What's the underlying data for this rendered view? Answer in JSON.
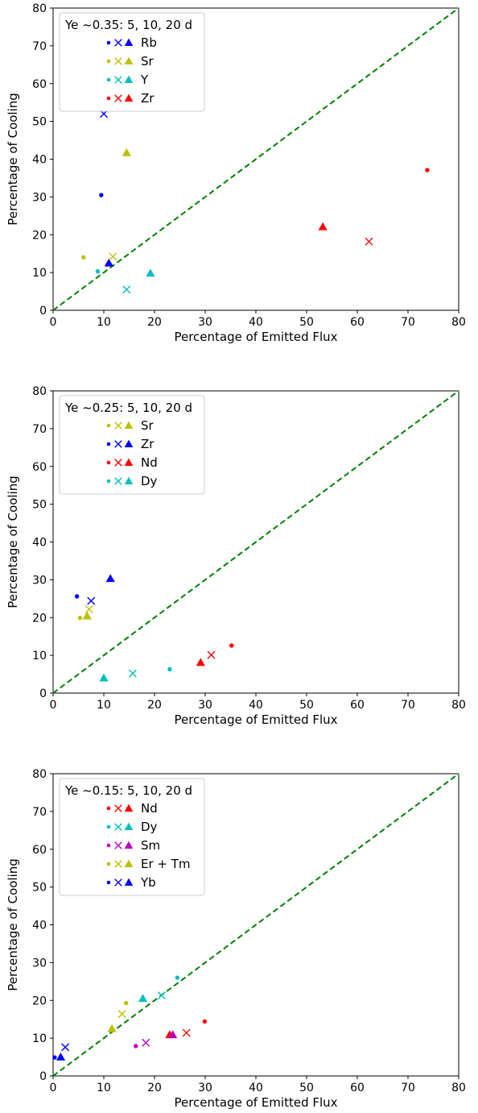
{
  "chart_data": [
    {
      "type": "scatter",
      "xlabel": "Percentage of Emitted Flux",
      "ylabel": "Percentage of Cooling",
      "xlim": [
        0,
        80
      ],
      "ylim": [
        0,
        80
      ],
      "xticks": [
        "0",
        "10",
        "20",
        "30",
        "40",
        "50",
        "60",
        "70",
        "80"
      ],
      "yticks": [
        "0",
        "10",
        "20",
        "30",
        "40",
        "50",
        "60",
        "70",
        "80"
      ],
      "reference_line": {
        "type": "y=x",
        "style": "dashed",
        "color": "#008000"
      },
      "legend": {
        "title": "Ye ~0.35: 5, 10, 20 d",
        "placement": "upper-left",
        "markers": [
          "circle",
          "x",
          "triangle"
        ]
      },
      "series": [
        {
          "name": "Rb",
          "color": "#0000ff",
          "points": [
            {
              "day": 5,
              "x": 9.5,
              "y": 30.5
            },
            {
              "day": 10,
              "x": 10.0,
              "y": 52.0
            },
            {
              "day": 20,
              "x": 11.0,
              "y": 12.5
            }
          ]
        },
        {
          "name": "Sr",
          "color": "#bfbf00",
          "points": [
            {
              "day": 5,
              "x": 6.0,
              "y": 14.0
            },
            {
              "day": 10,
              "x": 11.8,
              "y": 14.2
            },
            {
              "day": 20,
              "x": 14.5,
              "y": 41.7
            }
          ]
        },
        {
          "name": "Y",
          "color": "#00bfbf",
          "points": [
            {
              "day": 5,
              "x": 8.8,
              "y": 10.3
            },
            {
              "day": 10,
              "x": 14.5,
              "y": 5.5
            },
            {
              "day": 20,
              "x": 19.2,
              "y": 9.8
            }
          ]
        },
        {
          "name": "Zr",
          "color": "#ff0000",
          "points": [
            {
              "day": 5,
              "x": 73.8,
              "y": 37.1
            },
            {
              "day": 10,
              "x": 62.3,
              "y": 18.2
            },
            {
              "day": 20,
              "x": 53.2,
              "y": 22.1
            }
          ]
        }
      ]
    },
    {
      "type": "scatter",
      "xlabel": "Percentage of Emitted Flux",
      "ylabel": "Percentage of Cooling",
      "xlim": [
        0,
        80
      ],
      "ylim": [
        0,
        80
      ],
      "xticks": [
        "0",
        "10",
        "20",
        "30",
        "40",
        "50",
        "60",
        "70",
        "80"
      ],
      "yticks": [
        "0",
        "10",
        "20",
        "30",
        "40",
        "50",
        "60",
        "70",
        "80"
      ],
      "reference_line": {
        "type": "y=x",
        "style": "dashed",
        "color": "#008000"
      },
      "legend": {
        "title": "Ye ~0.25: 5, 10, 20 d",
        "placement": "upper-left",
        "markers": [
          "circle",
          "x",
          "triangle"
        ]
      },
      "series": [
        {
          "name": "Sr",
          "color": "#bfbf00",
          "points": [
            {
              "day": 5,
              "x": 5.3,
              "y": 19.9
            },
            {
              "day": 10,
              "x": 7.1,
              "y": 22.2
            },
            {
              "day": 20,
              "x": 6.7,
              "y": 20.4
            }
          ]
        },
        {
          "name": "Zr",
          "color": "#0000ff",
          "points": [
            {
              "day": 5,
              "x": 4.7,
              "y": 25.6
            },
            {
              "day": 10,
              "x": 7.5,
              "y": 24.4
            },
            {
              "day": 20,
              "x": 11.3,
              "y": 30.3
            }
          ]
        },
        {
          "name": "Nd",
          "color": "#ff0000",
          "points": [
            {
              "day": 5,
              "x": 35.2,
              "y": 12.6
            },
            {
              "day": 10,
              "x": 31.2,
              "y": 10.1
            },
            {
              "day": 20,
              "x": 29.1,
              "y": 8.1
            }
          ]
        },
        {
          "name": "Dy",
          "color": "#00bfbf",
          "points": [
            {
              "day": 5,
              "x": 23.0,
              "y": 6.3
            },
            {
              "day": 10,
              "x": 15.7,
              "y": 5.2
            },
            {
              "day": 20,
              "x": 10.0,
              "y": 4.0
            }
          ]
        }
      ]
    },
    {
      "type": "scatter",
      "xlabel": "Percentage of Emitted Flux",
      "ylabel": "Percentage of Cooling",
      "xlim": [
        0,
        80
      ],
      "ylim": [
        0,
        80
      ],
      "xticks": [
        "0",
        "10",
        "20",
        "30",
        "40",
        "50",
        "60",
        "70",
        "80"
      ],
      "yticks": [
        "0",
        "10",
        "20",
        "30",
        "40",
        "50",
        "60",
        "70",
        "80"
      ],
      "reference_line": {
        "type": "y=x",
        "style": "dashed",
        "color": "#008000"
      },
      "legend": {
        "title": "Ye ~0.15: 5, 10, 20 d",
        "placement": "upper-left",
        "markers": [
          "circle",
          "x",
          "triangle"
        ]
      },
      "series": [
        {
          "name": "Nd",
          "color": "#ff0000",
          "points": [
            {
              "day": 5,
              "x": 29.9,
              "y": 14.4
            },
            {
              "day": 10,
              "x": 26.3,
              "y": 11.4
            },
            {
              "day": 20,
              "x": 23.0,
              "y": 10.9
            }
          ]
        },
        {
          "name": "Dy",
          "color": "#00bfbf",
          "points": [
            {
              "day": 5,
              "x": 24.5,
              "y": 26.0
            },
            {
              "day": 10,
              "x": 21.4,
              "y": 21.3
            },
            {
              "day": 20,
              "x": 17.7,
              "y": 20.5
            }
          ]
        },
        {
          "name": "Sm",
          "color": "#bf00bf",
          "points": [
            {
              "day": 5,
              "x": 16.3,
              "y": 7.9
            },
            {
              "day": 10,
              "x": 18.3,
              "y": 8.8
            },
            {
              "day": 20,
              "x": 23.6,
              "y": 10.9
            }
          ]
        },
        {
          "name": "Er + Tm",
          "color": "#bfbf00",
          "points": [
            {
              "day": 5,
              "x": 14.4,
              "y": 19.3
            },
            {
              "day": 10,
              "x": 13.6,
              "y": 16.4
            },
            {
              "day": 20,
              "x": 11.6,
              "y": 12.5
            }
          ]
        },
        {
          "name": "Yb",
          "color": "#0000ff",
          "points": [
            {
              "day": 5,
              "x": 0.3,
              "y": 4.9
            },
            {
              "day": 10,
              "x": 2.4,
              "y": 7.6
            },
            {
              "day": 20,
              "x": 1.5,
              "y": 5.0
            }
          ]
        }
      ]
    }
  ]
}
